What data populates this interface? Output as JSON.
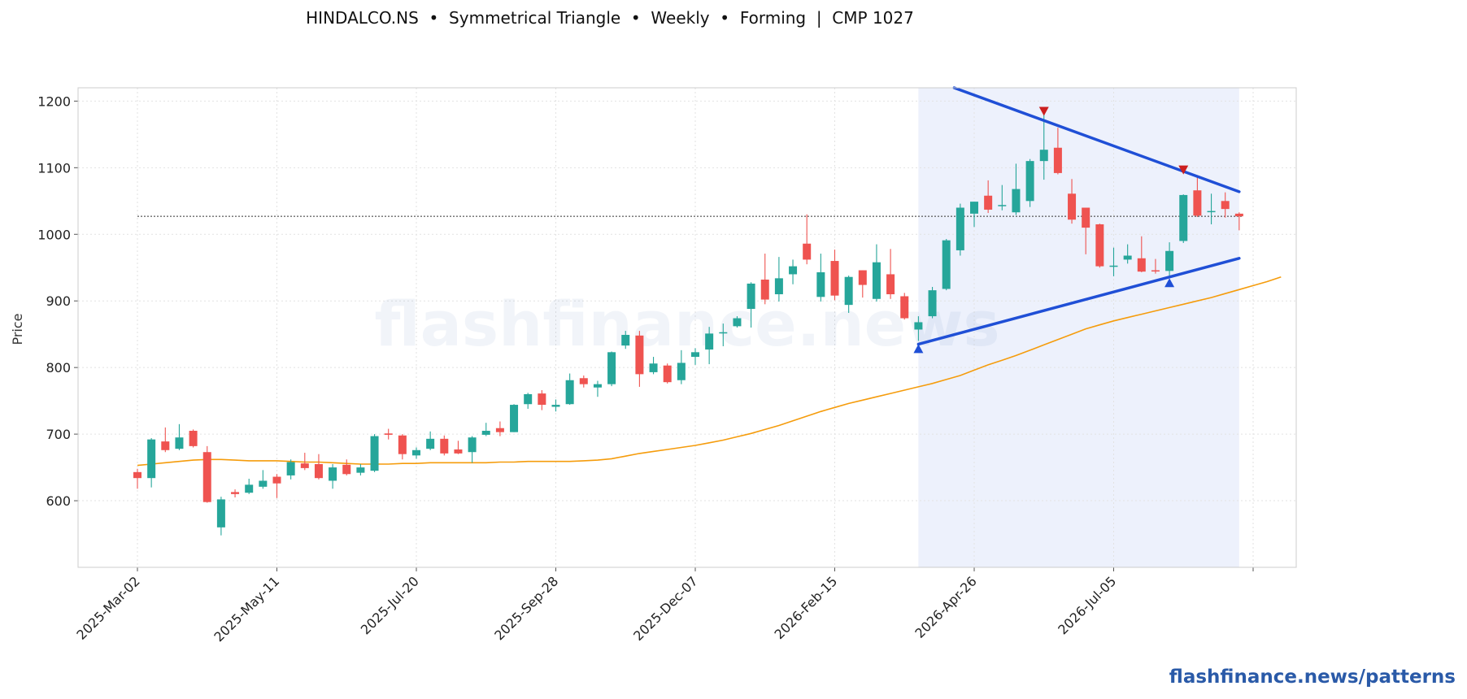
{
  "title": "HINDALCO.NS  •  Symmetrical Triangle  •  Weekly  •  Forming  |  CMP 1027",
  "footer": "flashfinance.news/patterns",
  "watermark": "flashfinance.news",
  "chart_data": {
    "type": "candlestick",
    "ticker": "HINDALCO.NS",
    "pattern": "Symmetrical Triangle",
    "timeframe": "Weekly",
    "status": "Forming",
    "cmp": 1027,
    "ylabel": "Price",
    "ylim": [
      500,
      1220
    ],
    "yticks": [
      600,
      700,
      800,
      900,
      1000,
      1100,
      1200
    ],
    "xtick_labels": [
      "2025-Mar-02",
      "2025-May-11",
      "2025-Jul-20",
      "2025-Sep-28",
      "2025-Dec-07",
      "2026-Feb-15",
      "2026-Apr-26",
      "2026-Jul-05"
    ],
    "xtick_index": [
      0,
      10,
      20,
      30,
      40,
      50,
      60,
      70
    ],
    "grid": true,
    "colors": {
      "up": "#26a69a",
      "down": "#ef5350",
      "trendline": "#1f4fd6",
      "ma": "#f59c0c",
      "highlight": "#e8edfb",
      "marker_top": "#cc1f1f",
      "marker_bottom": "#1f4fd6"
    },
    "candles": [
      {
        "o": 643,
        "h": 648,
        "l": 618,
        "c": 634
      },
      {
        "o": 634,
        "h": 694,
        "l": 620,
        "c": 692
      },
      {
        "o": 689,
        "h": 710,
        "l": 673,
        "c": 676
      },
      {
        "o": 678,
        "h": 715,
        "l": 676,
        "c": 695
      },
      {
        "o": 705,
        "h": 707,
        "l": 680,
        "c": 682
      },
      {
        "o": 673,
        "h": 682,
        "l": 597,
        "c": 598
      },
      {
        "o": 560,
        "h": 606,
        "l": 548,
        "c": 602
      },
      {
        "o": 613,
        "h": 617,
        "l": 605,
        "c": 610
      },
      {
        "o": 612,
        "h": 633,
        "l": 610,
        "c": 624
      },
      {
        "o": 621,
        "h": 646,
        "l": 618,
        "c": 630
      },
      {
        "o": 636,
        "h": 640,
        "l": 604,
        "c": 626
      },
      {
        "o": 638,
        "h": 662,
        "l": 632,
        "c": 658
      },
      {
        "o": 656,
        "h": 672,
        "l": 646,
        "c": 649
      },
      {
        "o": 655,
        "h": 670,
        "l": 632,
        "c": 634
      },
      {
        "o": 630,
        "h": 655,
        "l": 618,
        "c": 650
      },
      {
        "o": 654,
        "h": 662,
        "l": 638,
        "c": 640
      },
      {
        "o": 642,
        "h": 655,
        "l": 638,
        "c": 650
      },
      {
        "o": 645,
        "h": 700,
        "l": 643,
        "c": 697
      },
      {
        "o": 701,
        "h": 708,
        "l": 692,
        "c": 699
      },
      {
        "o": 698,
        "h": 700,
        "l": 662,
        "c": 670
      },
      {
        "o": 668,
        "h": 680,
        "l": 663,
        "c": 676
      },
      {
        "o": 678,
        "h": 704,
        "l": 676,
        "c": 693
      },
      {
        "o": 693,
        "h": 698,
        "l": 668,
        "c": 671
      },
      {
        "o": 677,
        "h": 690,
        "l": 670,
        "c": 671
      },
      {
        "o": 673,
        "h": 697,
        "l": 657,
        "c": 695
      },
      {
        "o": 699,
        "h": 717,
        "l": 697,
        "c": 705
      },
      {
        "o": 709,
        "h": 719,
        "l": 697,
        "c": 703
      },
      {
        "o": 703,
        "h": 745,
        "l": 703,
        "c": 744
      },
      {
        "o": 745,
        "h": 762,
        "l": 738,
        "c": 760
      },
      {
        "o": 761,
        "h": 766,
        "l": 736,
        "c": 744
      },
      {
        "o": 741,
        "h": 752,
        "l": 734,
        "c": 744
      },
      {
        "o": 745,
        "h": 791,
        "l": 744,
        "c": 781
      },
      {
        "o": 784,
        "h": 788,
        "l": 770,
        "c": 775
      },
      {
        "o": 770,
        "h": 780,
        "l": 756,
        "c": 775
      },
      {
        "o": 775,
        "h": 824,
        "l": 772,
        "c": 823
      },
      {
        "o": 833,
        "h": 855,
        "l": 828,
        "c": 849
      },
      {
        "o": 848,
        "h": 855,
        "l": 771,
        "c": 790
      },
      {
        "o": 793,
        "h": 816,
        "l": 790,
        "c": 806
      },
      {
        "o": 803,
        "h": 806,
        "l": 776,
        "c": 778
      },
      {
        "o": 781,
        "h": 826,
        "l": 775,
        "c": 807
      },
      {
        "o": 816,
        "h": 829,
        "l": 804,
        "c": 823
      },
      {
        "o": 827,
        "h": 861,
        "l": 805,
        "c": 851
      },
      {
        "o": 852,
        "h": 866,
        "l": 832,
        "c": 853
      },
      {
        "o": 862,
        "h": 877,
        "l": 860,
        "c": 874
      },
      {
        "o": 888,
        "h": 928,
        "l": 860,
        "c": 926
      },
      {
        "o": 932,
        "h": 971,
        "l": 895,
        "c": 902
      },
      {
        "o": 910,
        "h": 966,
        "l": 899,
        "c": 934
      },
      {
        "o": 940,
        "h": 962,
        "l": 925,
        "c": 952
      },
      {
        "o": 986,
        "h": 1030,
        "l": 955,
        "c": 962
      },
      {
        "o": 906,
        "h": 971,
        "l": 899,
        "c": 943
      },
      {
        "o": 960,
        "h": 977,
        "l": 901,
        "c": 908
      },
      {
        "o": 894,
        "h": 938,
        "l": 882,
        "c": 936
      },
      {
        "o": 946,
        "h": 946,
        "l": 905,
        "c": 924
      },
      {
        "o": 903,
        "h": 985,
        "l": 899,
        "c": 958
      },
      {
        "o": 940,
        "h": 978,
        "l": 903,
        "c": 910
      },
      {
        "o": 907,
        "h": 912,
        "l": 872,
        "c": 874
      },
      {
        "o": 857,
        "h": 877,
        "l": 840,
        "c": 868
      },
      {
        "o": 877,
        "h": 921,
        "l": 874,
        "c": 916
      },
      {
        "o": 918,
        "h": 993,
        "l": 916,
        "c": 991
      },
      {
        "o": 976,
        "h": 1046,
        "l": 968,
        "c": 1040
      },
      {
        "o": 1031,
        "h": 1049,
        "l": 1011,
        "c": 1049
      },
      {
        "o": 1058,
        "h": 1081,
        "l": 1032,
        "c": 1037
      },
      {
        "o": 1044,
        "h": 1074,
        "l": 1036,
        "c": 1044
      },
      {
        "o": 1033,
        "h": 1106,
        "l": 1029,
        "c": 1068
      },
      {
        "o": 1050,
        "h": 1113,
        "l": 1041,
        "c": 1110
      },
      {
        "o": 1110,
        "h": 1180,
        "l": 1082,
        "c": 1127
      },
      {
        "o": 1130,
        "h": 1160,
        "l": 1090,
        "c": 1092
      },
      {
        "o": 1061,
        "h": 1083,
        "l": 1016,
        "c": 1022
      },
      {
        "o": 1040,
        "h": 1040,
        "l": 970,
        "c": 1010
      },
      {
        "o": 1015,
        "h": 1016,
        "l": 950,
        "c": 952
      },
      {
        "o": 953,
        "h": 980,
        "l": 937,
        "c": 953
      },
      {
        "o": 962,
        "h": 985,
        "l": 956,
        "c": 968
      },
      {
        "o": 964,
        "h": 997,
        "l": 943,
        "c": 944
      },
      {
        "o": 946,
        "h": 963,
        "l": 941,
        "c": 945
      },
      {
        "o": 945,
        "h": 988,
        "l": 938,
        "c": 975
      },
      {
        "o": 990,
        "h": 1060,
        "l": 987,
        "c": 1059
      },
      {
        "o": 1066,
        "h": 1088,
        "l": 1026,
        "c": 1028
      },
      {
        "o": 1034,
        "h": 1061,
        "l": 1015,
        "c": 1035
      },
      {
        "o": 1050,
        "h": 1063,
        "l": 1025,
        "c": 1038
      },
      {
        "o": 1031,
        "h": 1033,
        "l": 1006,
        "c": 1027
      }
    ],
    "ma": [
      653,
      655,
      657,
      659,
      661,
      662,
      662,
      661,
      660,
      660,
      660,
      659,
      658,
      658,
      657,
      656,
      655,
      655,
      655,
      656,
      656,
      657,
      657,
      657,
      657,
      657,
      658,
      658,
      659,
      659,
      659,
      659,
      660,
      661,
      663,
      667,
      671,
      674,
      677,
      680,
      683,
      687,
      691,
      696,
      701,
      707,
      713,
      720,
      727,
      734,
      740,
      746,
      751,
      756,
      761,
      766,
      771,
      776,
      782,
      788,
      796,
      804,
      811,
      818,
      826,
      834,
      842,
      850,
      858,
      864,
      870,
      875,
      880,
      885,
      890,
      895,
      900,
      905,
      911,
      917,
      923,
      929,
      936
    ],
    "ma_start_index": 0,
    "triangle": {
      "upper": {
        "from": {
          "i": 58.3,
          "y": 1222
        },
        "to": {
          "i": 79,
          "y": 1064
        }
      },
      "lower": {
        "from": {
          "i": 56,
          "y": 835
        },
        "to": {
          "i": 79,
          "y": 964
        }
      }
    },
    "markers": {
      "pivot_highs": [
        {
          "i": 65,
          "y": 1184
        },
        {
          "i": 75,
          "y": 1096
        }
      ],
      "pivot_lows": [
        {
          "i": 56,
          "y": 829
        },
        {
          "i": 74,
          "y": 928
        }
      ]
    },
    "cmp_line": 1027,
    "cmp_line_from_index": 0,
    "highlight_range": [
      56,
      79
    ]
  }
}
